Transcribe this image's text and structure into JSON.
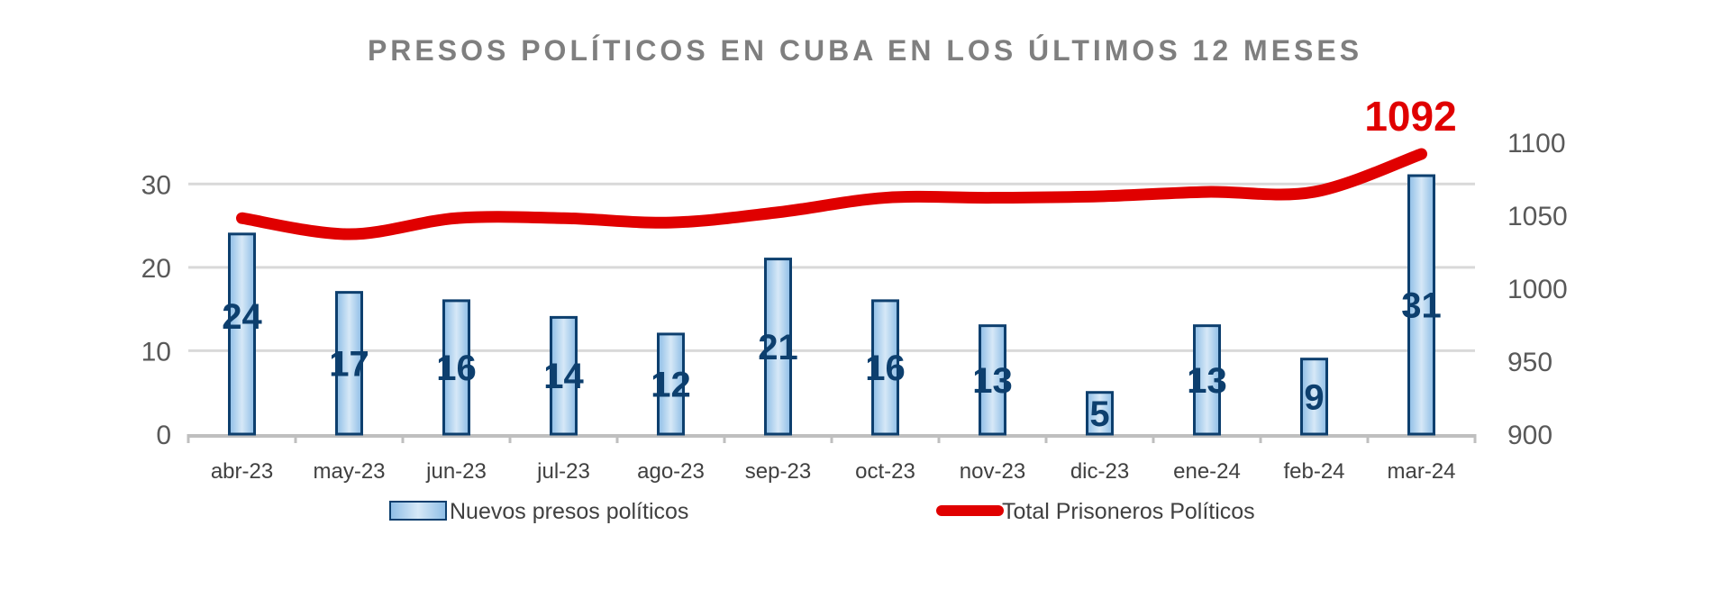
{
  "chart_data": {
    "type": "bar+line",
    "title": "PRESOS POLÍTICOS EN CUBA EN LOS ÚLTIMOS 12 MESES",
    "categories": [
      "abr-23",
      "may-23",
      "jun-23",
      "jul-23",
      "ago-23",
      "sep-23",
      "oct-23",
      "nov-23",
      "dic-23",
      "ene-24",
      "feb-24",
      "mar-24"
    ],
    "series": [
      {
        "name": "Nuevos presos políticos",
        "type": "bar",
        "axis": "left",
        "color": "#9dc7ea",
        "border": "#0d3f6e",
        "values": [
          24,
          17,
          16,
          14,
          12,
          21,
          16,
          13,
          5,
          13,
          9,
          31
        ]
      },
      {
        "name": "Total Prisoneros Políticos",
        "type": "line",
        "axis": "right",
        "color": "#e00000",
        "values": [
          1048,
          1037,
          1048,
          1048,
          1045,
          1052,
          1062,
          1062,
          1063,
          1066,
          1066,
          1092
        ]
      }
    ],
    "annotation": "1092",
    "y_left": {
      "range": [
        0,
        35
      ],
      "ticks": [
        "0",
        "10",
        "20",
        "30"
      ]
    },
    "y_right": {
      "range": [
        900,
        1100
      ],
      "ticks": [
        "900",
        "950",
        "1000",
        "1050",
        "1100"
      ]
    },
    "grid": true,
    "legend": "bottom"
  }
}
